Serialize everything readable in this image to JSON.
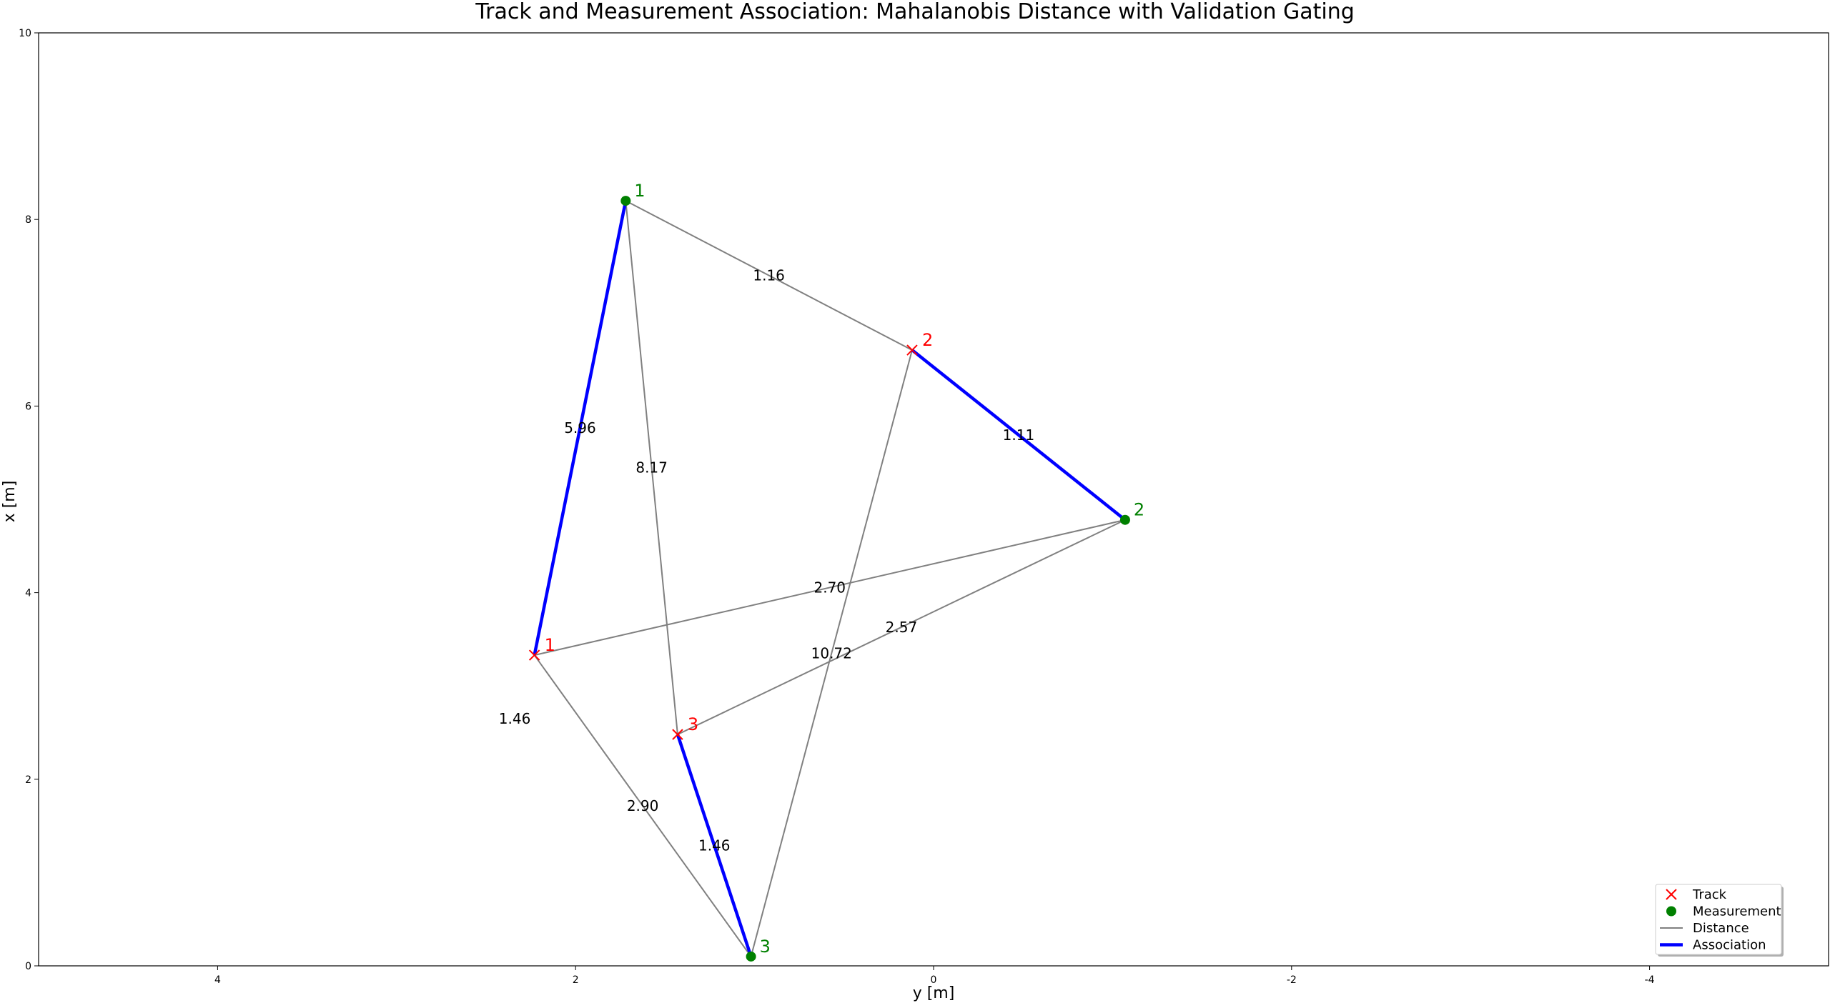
{
  "chart_data": {
    "type": "scatter",
    "title": "Track and Measurement Association: Mahalanobis Distance with Validation Gating",
    "xlabel": "y [m]",
    "ylabel": "x [m]",
    "xlim": [
      5,
      -5
    ],
    "ylim": [
      0,
      10
    ],
    "x_ticks": [
      4,
      2,
      0,
      -2,
      -4
    ],
    "y_ticks": [
      0,
      2,
      4,
      6,
      8,
      10
    ],
    "x_tick_labels": [
      "4",
      "2",
      "0",
      "-2",
      "-4"
    ],
    "y_tick_labels": [
      "0",
      "2",
      "4",
      "6",
      "8",
      "10"
    ],
    "x_axis_inverted": true,
    "grid": false,
    "legend_position": "bottom-right",
    "colors": {
      "track": "#ff0000",
      "measurement": "#008000",
      "distance": "#808080",
      "association": "#0000ff"
    },
    "tracks": [
      {
        "label": "1",
        "y": 2.23,
        "x": 3.33
      },
      {
        "label": "2",
        "y": 0.12,
        "x": 6.6
      },
      {
        "label": "3",
        "y": 1.43,
        "x": 2.48
      }
    ],
    "measurements": [
      {
        "label": "1",
        "y": 1.72,
        "x": 8.2
      },
      {
        "label": "2",
        "y": -1.07,
        "x": 4.78
      },
      {
        "label": "3",
        "y": 1.02,
        "x": 0.1
      }
    ],
    "distances": [
      {
        "track": "1",
        "measurement": "1",
        "value": "5.96",
        "associated": true
      },
      {
        "track": "1",
        "measurement": "2",
        "value": "2.70",
        "associated": false
      },
      {
        "track": "1",
        "measurement": "3",
        "value": "2.90",
        "associated": false
      },
      {
        "track": "2",
        "measurement": "1",
        "value": "1.16",
        "associated": false
      },
      {
        "track": "2",
        "measurement": "2",
        "value": "1.11",
        "associated": true
      },
      {
        "track": "2",
        "measurement": "3",
        "value": "10.72",
        "associated": false
      },
      {
        "track": "3",
        "measurement": "1",
        "value": "8.17",
        "associated": false
      },
      {
        "track": "3",
        "measurement": "2",
        "value": "2.57",
        "associated": false
      },
      {
        "track": "3",
        "measurement": "3",
        "value": "1.46",
        "associated": true
      }
    ],
    "stray_labels": [
      {
        "text": "1.46",
        "y": 2.34,
        "x": 2.65
      }
    ],
    "legend": [
      {
        "label": "Track",
        "symbol": "x-marker"
      },
      {
        "label": "Measurement",
        "symbol": "circle-marker"
      },
      {
        "label": "Distance",
        "symbol": "thin-line"
      },
      {
        "label": "Association",
        "symbol": "thick-line"
      }
    ]
  }
}
